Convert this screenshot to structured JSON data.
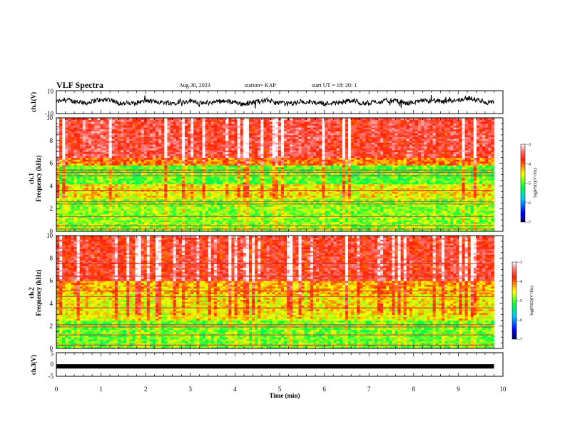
{
  "header": {
    "title": "VLF Spectra",
    "date": "Aug.30, 2023",
    "station": "station= KAP",
    "start_ut": "start  UT =   18: 20: 1"
  },
  "chart_data": [
    {
      "type": "line",
      "name": "ch1-waveform",
      "ylabel": "ch.1(V)",
      "xlim": [
        0,
        10
      ],
      "ylim": [
        -10,
        10
      ],
      "yticks": [
        "10",
        "-10"
      ],
      "description_values": {
        "baseline": 0,
        "typical_min": -6,
        "typical_max": 5
      },
      "color": "#000000"
    },
    {
      "type": "heatmap",
      "name": "ch1-spectrogram",
      "ylabel": "ch.1\nFrequency (kHz)",
      "xlim": [
        0,
        9.8
      ],
      "ylim": [
        0,
        10
      ],
      "yticks": [
        "0",
        "2",
        "4",
        "6",
        "8",
        "10"
      ],
      "colorbar": {
        "label": "log(PSD)(V²/Hz)",
        "range": [
          -7,
          -3
        ],
        "ticks": [
          "-3",
          "-4",
          "-5",
          "-6",
          "-7"
        ]
      },
      "bands_kHz": [
        0.2,
        0.5,
        1.3,
        2.4,
        2.6,
        3.6,
        4.9,
        5.2,
        5.4
      ]
    },
    {
      "type": "heatmap",
      "name": "ch2-spectrogram",
      "ylabel": "ch.2\nFrequency (kHz)",
      "xlim": [
        0,
        9.8
      ],
      "ylim": [
        0,
        10
      ],
      "yticks": [
        "0",
        "2",
        "4",
        "6",
        "8",
        "10"
      ],
      "colorbar": {
        "label": "log(PSD)(V²/Hz)",
        "range": [
          -7,
          -3
        ],
        "ticks": [
          "-3",
          "-4",
          "-5",
          "-6",
          "-7"
        ]
      },
      "bands_kHz": [
        0.3,
        1.2,
        1.9,
        2.1,
        3.6,
        4.6,
        5.1,
        6.4,
        7.5
      ]
    },
    {
      "type": "line",
      "name": "ch3-waveform",
      "ylabel": "ch.3(V)",
      "xlim": [
        0,
        10
      ],
      "ylim": [
        -5,
        5
      ],
      "yticks": [
        "5",
        "0",
        "-5"
      ],
      "level": -0.8,
      "color": "#000000"
    }
  ],
  "xaxis": {
    "label": "Time (min)",
    "ticks": [
      "0",
      "1",
      "2",
      "3",
      "4",
      "5",
      "6",
      "7",
      "8",
      "9",
      "10"
    ],
    "range": [
      0,
      10
    ]
  }
}
